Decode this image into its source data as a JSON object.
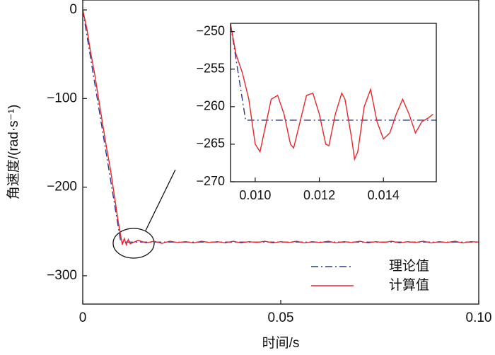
{
  "chart_data": [
    {
      "type": "line",
      "x_label": "时间/s",
      "y_label": "角速度/(rad·s⁻¹)",
      "xlim": [
        0,
        0.1
      ],
      "ylim": [
        -332,
        11.2
      ],
      "xticks": [
        0,
        0.05,
        {
          "value": 0.1,
          "label": "0.10"
        }
      ],
      "yticks": [
        0,
        {
          "value": -100,
          "label": "−100"
        },
        {
          "value": -200,
          "label": "−200"
        },
        {
          "value": -300,
          "label": "−300"
        }
      ],
      "series": [
        {
          "name": "理论值",
          "color": "#2b3a8f",
          "style": "dash-dot",
          "x": [
            0,
            0.0096,
            0.1
          ],
          "values": [
            0,
            -262,
            -262
          ]
        },
        {
          "name": "计算值",
          "color": "#e8262b",
          "style": "solid",
          "x": [
            0,
            0.0005,
            0.001,
            0.002,
            0.003,
            0.004,
            0.005,
            0.006,
            0.007,
            0.008,
            0.009,
            0.01,
            0.0105,
            0.011,
            0.0115,
            0.012,
            0.014,
            0.016,
            0.018,
            0.02,
            0.022,
            0.024,
            0.026,
            0.028,
            0.03,
            0.032,
            0.034,
            0.036,
            0.038,
            0.04,
            0.042,
            0.044,
            0.046,
            0.048,
            0.05,
            0.052,
            0.054,
            0.056,
            0.058,
            0.06,
            0.062,
            0.064,
            0.066,
            0.068,
            0.07,
            0.072,
            0.074,
            0.076,
            0.078,
            0.08,
            0.082,
            0.084,
            0.086,
            0.088,
            0.09,
            0.092,
            0.094,
            0.096,
            0.098,
            0.1
          ],
          "values": [
            0,
            -10,
            -20,
            -48,
            -72,
            -100,
            -128,
            -155,
            -180,
            -210,
            -240,
            -265,
            -258,
            -265,
            -259,
            -264,
            -260,
            -263,
            -261,
            -263.5,
            -261,
            -262.5,
            -261.5,
            -263,
            -261,
            -262.5,
            -261.5,
            -263,
            -261,
            -263,
            -261.5,
            -262.5,
            -261,
            -263,
            -261.5,
            -262.5,
            -261,
            -263,
            -261.5,
            -262.5,
            -261,
            -263,
            -261.5,
            -262.5,
            -261,
            -263,
            -261.5,
            -262.5,
            -261,
            -263,
            -261.5,
            -262.5,
            -261,
            -263,
            -261.5,
            -262.5,
            -261,
            -263,
            -261.5,
            -262
          ]
        }
      ],
      "legend": "lower-right"
    },
    {
      "type": "line",
      "xlim": [
        0.00923,
        0.01565
      ],
      "ylim": [
        -270,
        -248.9
      ],
      "xticks": [
        {
          "value": 0.01,
          "label": "0.010"
        },
        {
          "value": 0.012,
          "label": "0.012"
        },
        {
          "value": 0.014,
          "label": "0.014"
        }
      ],
      "yticks": [
        {
          "value": -250,
          "label": "−250"
        },
        {
          "value": -255,
          "label": "−255"
        },
        {
          "value": -260,
          "label": "−260"
        },
        {
          "value": -265,
          "label": "−265"
        },
        {
          "value": -270,
          "label": "−270"
        }
      ],
      "series": [
        {
          "color": "#2b3a8f",
          "style": "dash-dot",
          "x": [
            0.00923,
            0.0097,
            0.01565
          ],
          "values": [
            -249,
            -261.8,
            -261.8
          ]
        },
        {
          "color": "#e8262b",
          "style": "solid",
          "x": [
            0.00923,
            0.0094,
            0.0096,
            0.0098,
            0.01,
            0.01015,
            0.0103,
            0.0105,
            0.0107,
            0.0109,
            0.0111,
            0.0112,
            0.0114,
            0.0116,
            0.0118,
            0.012,
            0.0122,
            0.0123,
            0.0125,
            0.0127,
            0.0128,
            0.013,
            0.0131,
            0.0132,
            0.0134,
            0.0136,
            0.0138,
            0.014,
            0.0142,
            0.0144,
            0.0146,
            0.0148,
            0.015,
            0.0152,
            0.0154,
            0.01555
          ],
          "values": [
            -249,
            -253,
            -255.5,
            -259,
            -265,
            -266,
            -263,
            -259,
            -258.5,
            -261,
            -265,
            -265.5,
            -262,
            -258.5,
            -258.2,
            -261,
            -265,
            -265.2,
            -261,
            -258.2,
            -259,
            -264,
            -267,
            -266,
            -260,
            -257.7,
            -262,
            -264.3,
            -263.5,
            -261,
            -259,
            -261,
            -263.5,
            -262,
            -261.5,
            -261
          ]
        }
      ]
    }
  ]
}
